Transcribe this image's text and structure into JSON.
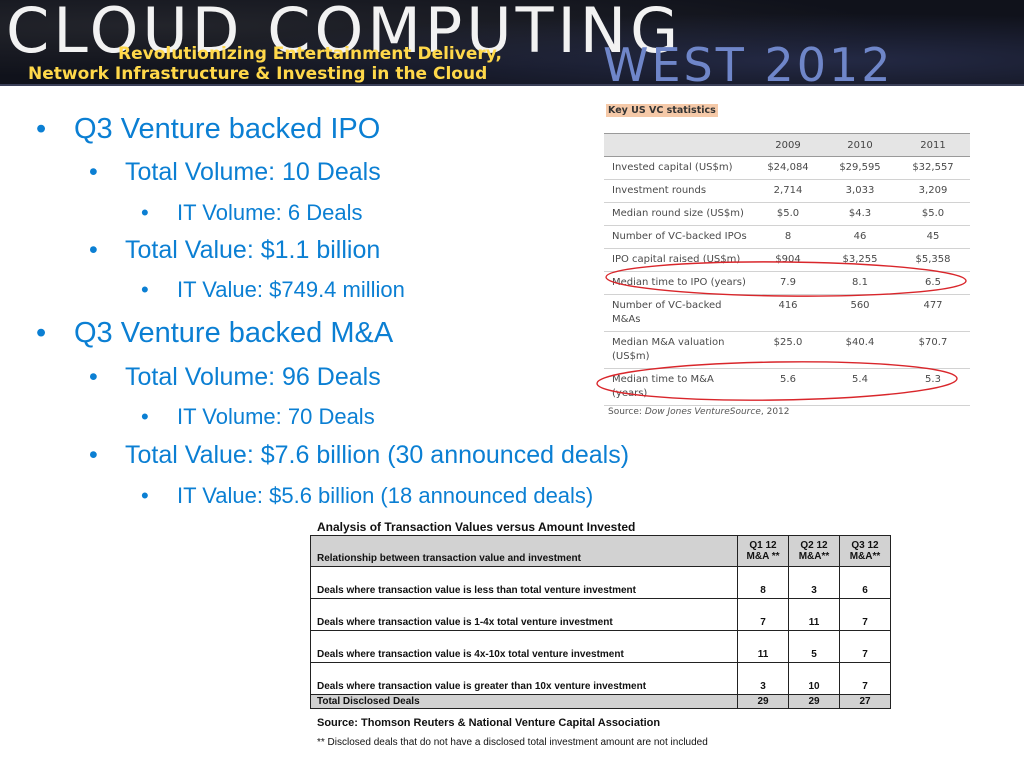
{
  "banner": {
    "title": "CLOUD COMPUTING",
    "subtitle_line1": "Revolutionizing Entertainment Delivery,",
    "subtitle_line2": "Network Infrastructure & Investing in the Cloud",
    "event": "WEST 2012"
  },
  "bullets": {
    "symbol": "•",
    "ipo_heading": "Q3 Venture backed IPO",
    "ipo_total_volume": "Total Volume: 10 Deals",
    "ipo_it_volume": "IT Volume: 6 Deals",
    "ipo_total_value": "Total Value: $1.1 billion",
    "ipo_it_value": "IT Value: $749.4 million",
    "ma_heading": "Q3 Venture backed M&A",
    "ma_total_volume": "Total Volume: 96 Deals",
    "ma_it_volume": "IT Volume: 70 Deals",
    "ma_total_value": "Total Value: $7.6 billion (30 announced deals)",
    "ma_it_value": "IT Value: $5.6 billion (18 announced deals)"
  },
  "vc_stats": {
    "title": "Key US VC statistics",
    "years": [
      "2009",
      "2010",
      "2011"
    ],
    "rows": [
      {
        "label": "Invested capital (US$m)",
        "values": [
          "$24,084",
          "$29,595",
          "$32,557"
        ]
      },
      {
        "label": "Investment rounds",
        "values": [
          "2,714",
          "3,033",
          "3,209"
        ]
      },
      {
        "label": "Median round size (US$m)",
        "values": [
          "$5.0",
          "$4.3",
          "$5.0"
        ]
      },
      {
        "label": "Number of VC-backed IPOs",
        "values": [
          "8",
          "46",
          "45"
        ]
      },
      {
        "label": "IPO capital raised (US$m)",
        "values": [
          "$904",
          "$3,255",
          "$5,358"
        ]
      },
      {
        "label": "Median time to IPO (years)",
        "values": [
          "7.9",
          "8.1",
          "6.5"
        ]
      },
      {
        "label": "Number of VC-backed M&As",
        "values": [
          "416",
          "560",
          "477"
        ]
      },
      {
        "label": "Median M&A valuation (US$m)",
        "values": [
          "$25.0",
          "$40.4",
          "$70.7"
        ]
      },
      {
        "label": "Median time to M&A (years)",
        "values": [
          "5.6",
          "5.4",
          "5.3"
        ]
      }
    ],
    "source_prefix": "Source: ",
    "source_name": "Dow Jones VentureSource",
    "source_year": ", 2012",
    "highlight_color": "#d9262b"
  },
  "analysis": {
    "title": "Analysis of Transaction Values versus Amount Invested",
    "header_desc": "Relationship between transaction  value and investment",
    "header_q1_line1": "Q1 12",
    "header_q1_line2": "M&A **",
    "header_q2_line1": "Q2 12",
    "header_q2_line2": "M&A**",
    "header_q3_line1": "Q3 12",
    "header_q3_line2": "M&A**",
    "rows": [
      {
        "label": "Deals where transaction value is less than total venture investment",
        "q1": "8",
        "q2": "3",
        "q3": "6"
      },
      {
        "label": "Deals where transaction value is 1-4x total venture investment",
        "q1": "7",
        "q2": "11",
        "q3": "7"
      },
      {
        "label": "Deals where transaction value is 4x-10x total venture investment",
        "q1": "11",
        "q2": "5",
        "q3": "7"
      },
      {
        "label": "Deals where transaction value is greater than 10x venture investment",
        "q1": "3",
        "q2": "10",
        "q3": "7"
      }
    ],
    "total": {
      "label": "Total Disclosed Deals",
      "q1": "29",
      "q2": "29",
      "q3": "27"
    },
    "source": "Source: Thomson Reuters & National Venture Capital Association",
    "note": "** Disclosed deals that do not have a disclosed total investment amount are not included"
  }
}
